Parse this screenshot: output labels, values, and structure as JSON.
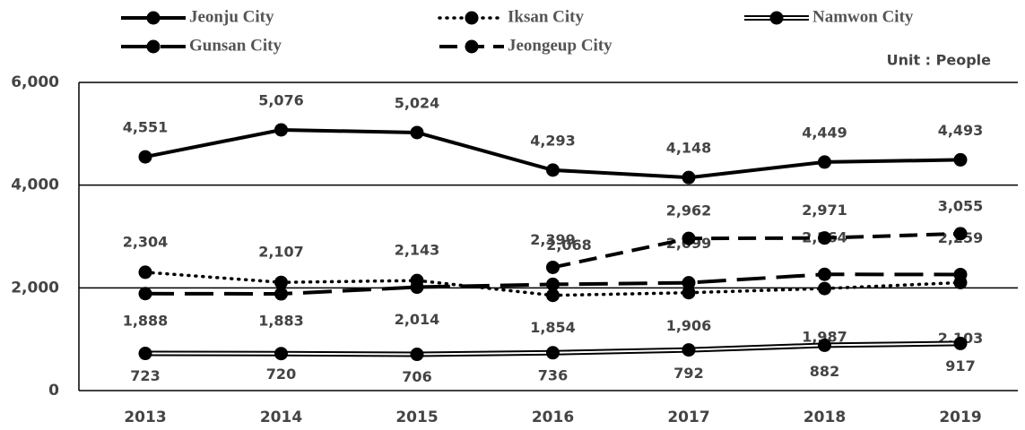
{
  "chart_data": {
    "type": "line",
    "annotation": "Unit : People",
    "categories": [
      "2013",
      "2014",
      "2015",
      "2016",
      "2017",
      "2018",
      "2019"
    ],
    "series": [
      {
        "name": "Jeonju City",
        "color": "#000000",
        "values": [
          4551,
          5076,
          5024,
          4293,
          4148,
          4449,
          4493
        ],
        "value_labels": [
          "4,551",
          "5,076",
          "5,024",
          "4,293",
          "4,148",
          "4,449",
          "4,493"
        ]
      },
      {
        "name": "Iksan City",
        "color": "#000000",
        "values": [
          2304,
          2107,
          2143,
          1854,
          1906,
          1987,
          2103
        ],
        "value_labels": [
          "2,304",
          "2,107",
          "2,143",
          "1,854",
          "1,906",
          "1,987",
          "2,103"
        ]
      },
      {
        "name": "Namwon City",
        "color": "#000000",
        "values": [
          723,
          720,
          706,
          736,
          792,
          882,
          917
        ],
        "value_labels": [
          "723",
          "720",
          "706",
          "736",
          "792",
          "882",
          "917"
        ]
      },
      {
        "name": "Gunsan City",
        "color": "#000000",
        "values": [
          1888,
          1883,
          2014,
          2068,
          2099,
          2264,
          2259
        ],
        "value_labels": [
          "1,888",
          "1,883",
          "2,014",
          "2,068",
          "2,099",
          "2,264",
          "2,259"
        ]
      },
      {
        "name": "Jeongeup City",
        "color": "#000000",
        "values": [
          null,
          null,
          null,
          2399,
          2962,
          2971,
          3055
        ],
        "value_labels": [
          null,
          null,
          null,
          "2,399",
          "2,962",
          "2,971",
          "3,055"
        ]
      }
    ],
    "ylim": [
      0,
      6000
    ],
    "yticks": [
      0,
      {
        "value": 2000,
        "label": "2,000"
      },
      {
        "value": 4000,
        "label": "4,000"
      },
      {
        "value": 6000,
        "label": "6,000"
      }
    ],
    "grid": true
  }
}
